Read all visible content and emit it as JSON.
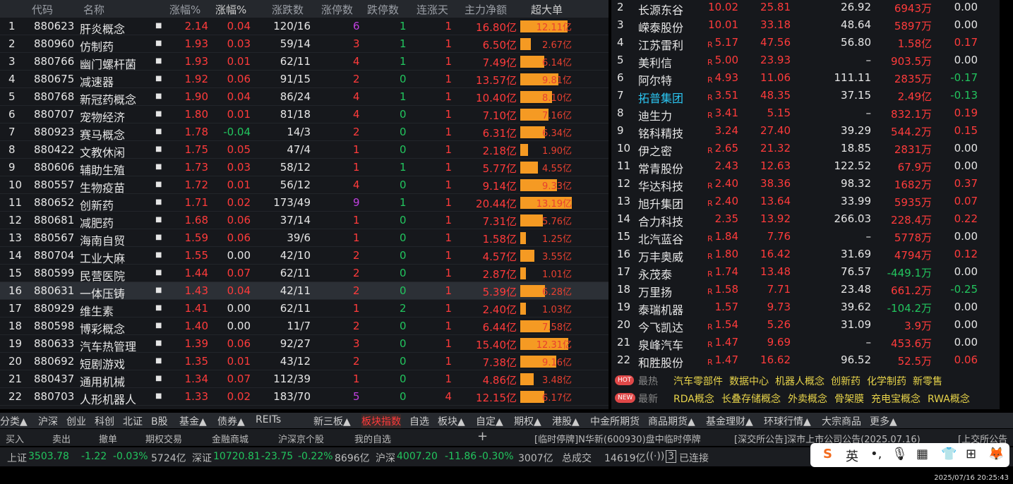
{
  "left_table": {
    "headers": [
      "代码",
      "名称",
      "涨幅%",
      "涨幅%",
      "涨跌数",
      "涨停数",
      "跌停数",
      "连涨天",
      "主力净额",
      "超大单"
    ],
    "rows": [
      [
        "1",
        "880623",
        "肝炎概念",
        "2.14",
        "0.04",
        "120/16",
        "6",
        "1",
        "1",
        "16.80亿",
        "12.11亿",
        12.11
      ],
      [
        "2",
        "880960",
        "仿制药",
        "1.93",
        "0.03",
        "59/14",
        "3",
        "1",
        "1",
        "6.50亿",
        "2.67亿",
        2.67
      ],
      [
        "3",
        "880766",
        "幽门螺杆菌",
        "1.93",
        "0.01",
        "62/11",
        "4",
        "1",
        "1",
        "7.49亿",
        "6.14亿",
        6.14
      ],
      [
        "4",
        "880675",
        "减速器",
        "1.92",
        "0.06",
        "91/15",
        "2",
        "0",
        "1",
        "13.57亿",
        "9.81亿",
        9.81
      ],
      [
        "5",
        "880768",
        "新冠药概念",
        "1.90",
        "0.04",
        "86/24",
        "4",
        "1",
        "1",
        "10.40亿",
        "8.10亿",
        8.1
      ],
      [
        "6",
        "880707",
        "宠物经济",
        "1.80",
        "0.01",
        "81/18",
        "4",
        "0",
        "1",
        "7.10亿",
        "7.16亿",
        7.16
      ],
      [
        "7",
        "880923",
        "赛马概念",
        "1.78",
        "-0.04",
        "14/3",
        "2",
        "0",
        "1",
        "6.31亿",
        "6.34亿",
        6.34
      ],
      [
        "8",
        "880422",
        "文教休闲",
        "1.75",
        "0.05",
        "47/4",
        "1",
        "0",
        "1",
        "2.18亿",
        "1.90亿",
        1.9
      ],
      [
        "9",
        "880606",
        "辅助生殖",
        "1.73",
        "0.03",
        "58/12",
        "1",
        "1",
        "1",
        "5.77亿",
        "4.55亿",
        4.55
      ],
      [
        "10",
        "880557",
        "生物疫苗",
        "1.72",
        "0.01",
        "56/12",
        "4",
        "0",
        "1",
        "9.14亿",
        "9.33亿",
        9.33
      ],
      [
        "11",
        "880652",
        "创新药",
        "1.71",
        "0.02",
        "173/49",
        "9",
        "1",
        "1",
        "20.44亿",
        "13.19亿",
        13.19
      ],
      [
        "12",
        "880681",
        "减肥药",
        "1.68",
        "0.06",
        "37/14",
        "1",
        "0",
        "1",
        "7.31亿",
        "5.76亿",
        5.76
      ],
      [
        "13",
        "880567",
        "海南自贸",
        "1.59",
        "0.06",
        "39/6",
        "1",
        "0",
        "1",
        "1.58亿",
        "1.25亿",
        1.25
      ],
      [
        "14",
        "880704",
        "工业大麻",
        "1.55",
        "0.00",
        "42/10",
        "2",
        "0",
        "1",
        "4.57亿",
        "3.55亿",
        3.55
      ],
      [
        "15",
        "880599",
        "民营医院",
        "1.44",
        "0.07",
        "62/11",
        "2",
        "0",
        "1",
        "2.87亿",
        "1.01亿",
        1.01
      ],
      [
        "16",
        "880631",
        "一体压铸",
        "1.43",
        "0.04",
        "42/11",
        "2",
        "0",
        "1",
        "5.39亿",
        "6.28亿",
        6.28
      ],
      [
        "17",
        "880929",
        "维生素",
        "1.41",
        "0.00",
        "62/11",
        "1",
        "2",
        "1",
        "2.40亿",
        "1.03亿",
        1.03
      ],
      [
        "18",
        "880598",
        "博彩概念",
        "1.40",
        "0.00",
        "11/7",
        "2",
        "0",
        "1",
        "6.44亿",
        "7.58亿",
        7.58
      ],
      [
        "19",
        "880633",
        "汽车热管理",
        "1.39",
        "0.06",
        "92/27",
        "3",
        "0",
        "1",
        "15.40亿",
        "12.31亿",
        12.31
      ],
      [
        "20",
        "880692",
        "短剧游戏",
        "1.35",
        "0.01",
        "43/12",
        "2",
        "0",
        "1",
        "7.38亿",
        "9.16亿",
        9.16
      ],
      [
        "21",
        "880437",
        "通用机械",
        "1.34",
        "0.07",
        "112/39",
        "1",
        "0",
        "1",
        "4.86亿",
        "3.48亿",
        3.48
      ],
      [
        "22",
        "880703",
        "人形机器人",
        "1.33",
        "0.02",
        "183/70",
        "5",
        "0",
        "4",
        "12.15亿",
        "6.17亿",
        6.17
      ]
    ]
  },
  "right_table": {
    "rows": [
      [
        "2",
        "长源东谷",
        "",
        "10.02",
        "25.81",
        "26.92",
        "6943万",
        "0.00"
      ],
      [
        "3",
        "嵘泰股份",
        "",
        "10.01",
        "33.18",
        "48.64",
        "5897万",
        "0.00"
      ],
      [
        "4",
        "江苏雷利",
        "R",
        "5.17",
        "47.56",
        "56.80",
        "1.58亿",
        "0.17"
      ],
      [
        "5",
        "美利信",
        "R",
        "5.00",
        "23.93",
        "–",
        "903.5万",
        "0.00"
      ],
      [
        "6",
        "阿尔特",
        "R",
        "4.93",
        "11.06",
        "111.11",
        "2835万",
        "-0.17"
      ],
      [
        "7",
        "拓普集团",
        "R",
        "3.51",
        "48.35",
        "37.15",
        "2.49亿",
        "-0.13"
      ],
      [
        "8",
        "迪生力",
        "R",
        "3.41",
        "5.15",
        "–",
        "832.1万",
        "0.19"
      ],
      [
        "9",
        "铭科精技",
        "",
        "3.24",
        "27.40",
        "39.29",
        "544.2万",
        "0.15"
      ],
      [
        "10",
        "伊之密",
        "R",
        "2.65",
        "21.32",
        "18.85",
        "2831万",
        "0.00"
      ],
      [
        "11",
        "常青股份",
        "",
        "2.43",
        "12.63",
        "122.52",
        "67.9万",
        "0.00"
      ],
      [
        "12",
        "华达科技",
        "R",
        "2.40",
        "38.36",
        "98.32",
        "1682万",
        "0.37"
      ],
      [
        "13",
        "旭升集团",
        "R",
        "2.40",
        "13.64",
        "33.99",
        "5935万",
        "0.07"
      ],
      [
        "14",
        "合力科技",
        "",
        "2.35",
        "13.92",
        "266.03",
        "228.4万",
        "0.22"
      ],
      [
        "15",
        "北汽蓝谷",
        "R",
        "1.84",
        "7.76",
        "–",
        "5778万",
        "0.00"
      ],
      [
        "16",
        "万丰奥威",
        "R",
        "1.80",
        "16.42",
        "31.69",
        "4794万",
        "0.12"
      ],
      [
        "17",
        "永茂泰",
        "R",
        "1.74",
        "13.48",
        "76.57",
        "-449.1万",
        "0.00"
      ],
      [
        "18",
        "万里扬",
        "R",
        "1.58",
        "7.71",
        "23.48",
        "661.2万",
        "-0.25"
      ],
      [
        "19",
        "泰瑞机器",
        "",
        "1.57",
        "9.73",
        "39.62",
        "-104.2万",
        "0.00"
      ],
      [
        "20",
        "今飞凯达",
        "R",
        "1.54",
        "5.26",
        "31.09",
        "3.9万",
        "0.00"
      ],
      [
        "21",
        "泉峰汽车",
        "R",
        "1.47",
        "9.69",
        "–",
        "453.6万",
        "0.00"
      ],
      [
        "22",
        "和胜股份",
        "R",
        "1.47",
        "16.62",
        "96.52",
        "52.5万",
        "0.06"
      ]
    ]
  },
  "hot": {
    "hot_badge": "HOT",
    "hot_label": "最热",
    "hot_items": [
      "汽车零部件",
      "数据中心",
      "机器人概念",
      "创新药",
      "化学制药",
      "新零售"
    ],
    "new_badge": "NEW",
    "new_label": "最新",
    "new_items": [
      "RDA概念",
      "长叠存储概念",
      "外卖概念",
      "骨架膜",
      "充电宝概念",
      "RWA概念"
    ]
  },
  "tabs": [
    "分类▲",
    "沪深",
    "创业",
    "科创",
    "北证",
    "B股",
    "基金▲",
    "债券▲",
    "REITs",
    "新三板▲",
    "板块指数",
    "自选",
    "板块▲",
    "自定▲",
    "期权▲",
    "港股▲",
    "中金所期货",
    "商品期货▲",
    "基金理财▲",
    "环球行情▲",
    "大宗商品",
    "更多▲"
  ],
  "active_tab": "板块指数",
  "toolbar": [
    "买入",
    "卖出",
    "撤单",
    "期权交易",
    "金融商城",
    "沪深京个股",
    "我的自选"
  ],
  "ticker": [
    "[临时停牌]N华新(600930)盘中临时停牌",
    "[深交所公告]深市上市公司公告(2025.07.16)",
    "[上交所公告"
  ],
  "status": {
    "sh_label": "上证",
    "sh": "3503.78",
    "sh_chg": "-1.22",
    "sh_pct": "-0.03%",
    "sh_amt": "5724亿",
    "sz_label": "深证",
    "sz": "10720.81",
    "sz_chg": "-23.75",
    "sz_pct": "-0.22%",
    "sz_amt": "8696亿",
    "hs_label": "沪深",
    "hs": "4007.20",
    "hs_chg": "-11.86",
    "hs_pct": "-0.30%",
    "hs_amt": "3007亿",
    "total_label": "总成交",
    "total": "14619亿",
    "conn_count": "3",
    "conn": "已连接"
  },
  "ime": {
    "lang": "英"
  },
  "clock": "2025/07/16 20:25:43",
  "colors": {
    "up": "#ff3b3b",
    "down": "#22c55e",
    "bar": "#f59a23",
    "hot_text": "#e8d44a"
  }
}
